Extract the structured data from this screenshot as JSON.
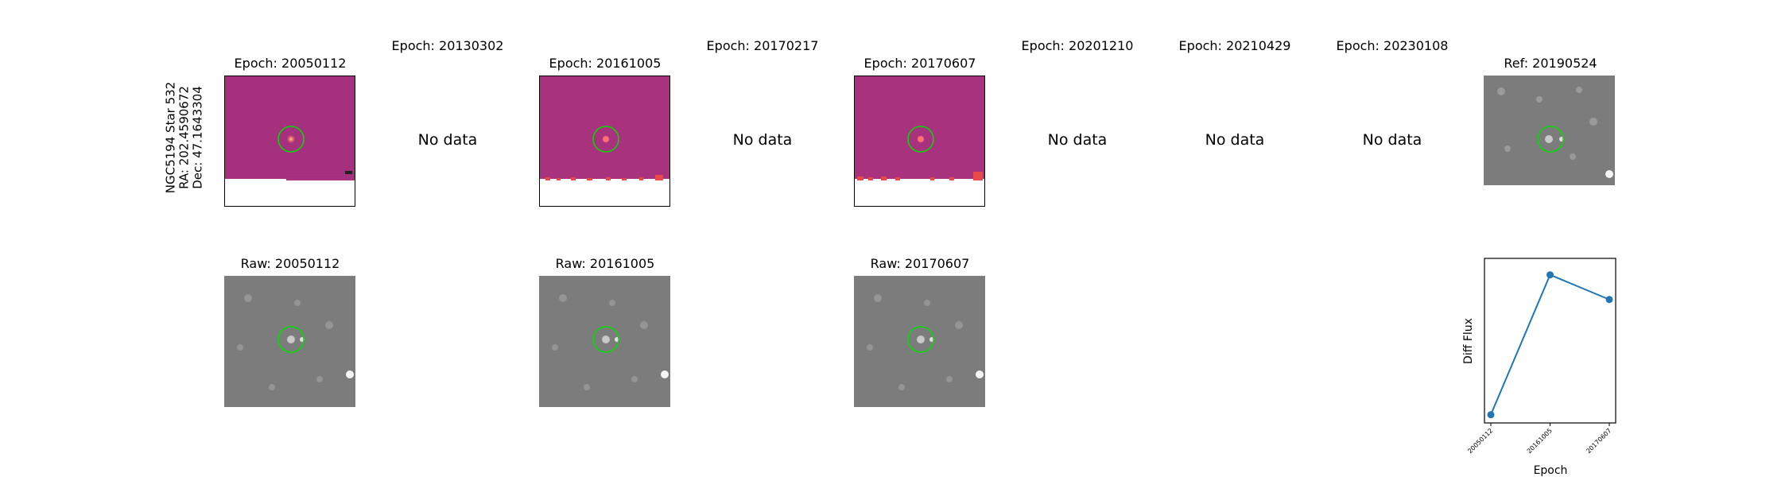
{
  "star_label": {
    "line1": "NGC5194 Star 532",
    "line2": "RA: 202.4590672",
    "line3": "Dec: 47.1643304"
  },
  "top_titles": [
    "Epoch: 20050112",
    "Epoch: 20130302",
    "Epoch: 20161005",
    "Epoch: 20170217",
    "Epoch: 20170607",
    "Epoch: 20201210",
    "Epoch: 20210429",
    "Epoch: 20230108",
    "Ref: 20190524"
  ],
  "no_data_text": "No data",
  "raw_titles": [
    "Raw: 20050112",
    "Raw: 20161005",
    "Raw: 20170607"
  ],
  "colors": {
    "diff_background": "#a9327f",
    "raw_background": "#7c7c7c",
    "marker_circle": "#00dd00",
    "line_color": "#1f77b4"
  },
  "chart_data": {
    "type": "line",
    "xlabel": "Epoch",
    "ylabel": "Diff Flux",
    "categories": [
      "20050112",
      "20161005",
      "20170607"
    ],
    "values": [
      0.05,
      0.9,
      0.75
    ],
    "ylim": [
      0,
      1
    ],
    "grid": false
  }
}
